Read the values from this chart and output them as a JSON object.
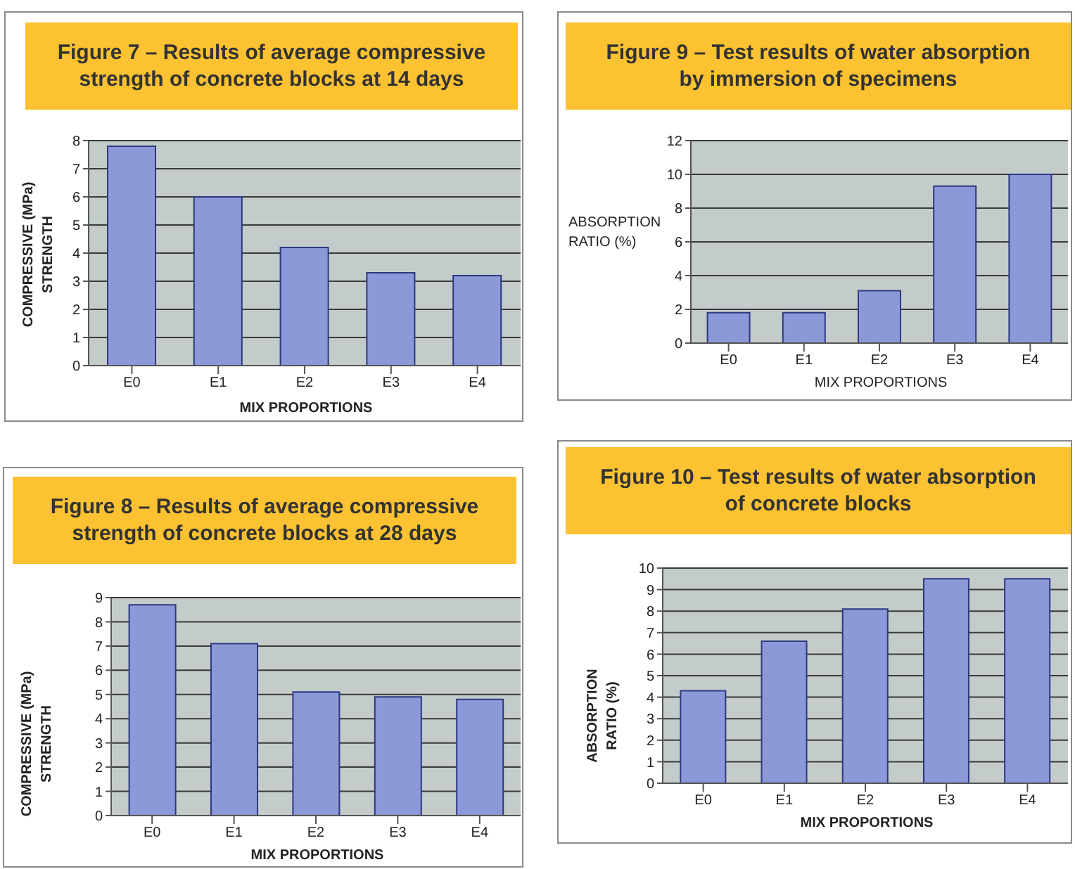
{
  "chart_data": [
    {
      "type": "bar",
      "title": "Figure 7 – Results of average compressive strength of concrete blocks at 14 days",
      "xlabel": "MIX PROPORTIONS",
      "ylabel": "COMPRESSIVE (MPa)\nSTRENGTH",
      "categories": [
        "E0",
        "E1",
        "E2",
        "E3",
        "E4"
      ],
      "values": [
        7.8,
        6.0,
        4.2,
        3.3,
        3.2
      ],
      "color": "#8c98d8",
      "ylim": [
        0,
        8
      ],
      "yticks": [
        0,
        1,
        2,
        3,
        4,
        5,
        6,
        7,
        8
      ],
      "grid": "y"
    },
    {
      "type": "bar",
      "title": "Figure 9 – Test results of water absorption by immersion of specimens",
      "xlabel": "MIX PROPORTIONS",
      "ylabel": "ABSORPTION\nRATIO (%)",
      "categories": [
        "E0",
        "E1",
        "E2",
        "E3",
        "E4"
      ],
      "values": [
        1.8,
        1.8,
        3.1,
        9.3,
        10.0
      ],
      "color": "#8c98d8",
      "ylim": [
        0,
        12
      ],
      "yticks": [
        0,
        2,
        4,
        6,
        8,
        10,
        12
      ],
      "grid": "y"
    },
    {
      "type": "bar",
      "title": "Figure 8 – Results of average compressive strength of concrete blocks at 28 days",
      "xlabel": "MIX PROPORTIONS",
      "ylabel": "COMPRESSIVE (MPa)\nSTRENGTH",
      "categories": [
        "E0",
        "E1",
        "E2",
        "E3",
        "E4"
      ],
      "values": [
        8.7,
        7.1,
        5.1,
        4.9,
        4.8
      ],
      "color": "#8c98d8",
      "ylim": [
        0,
        9
      ],
      "yticks": [
        0,
        1,
        2,
        3,
        4,
        5,
        6,
        7,
        8,
        9
      ],
      "grid": "y"
    },
    {
      "type": "bar",
      "title": "Figure 10 – Test results of water absorption of concrete blocks",
      "xlabel": "MIX PROPORTIONS",
      "ylabel": "ABSORPTION\nRATIO (%)",
      "categories": [
        "E0",
        "E1",
        "E2",
        "E3",
        "E4"
      ],
      "values": [
        4.3,
        6.6,
        8.1,
        9.5,
        9.5
      ],
      "color": "#8c98d8",
      "ylim": [
        0,
        10
      ],
      "yticks": [
        0,
        1,
        2,
        3,
        4,
        5,
        6,
        7,
        8,
        9,
        10
      ],
      "grid": "y"
    }
  ]
}
